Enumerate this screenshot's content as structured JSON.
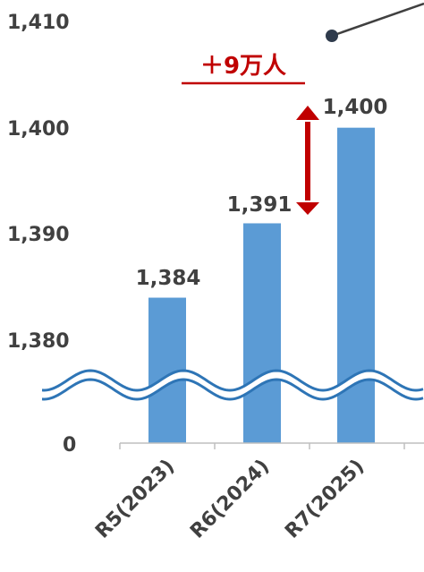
{
  "chart_data": {
    "type": "bar",
    "title": "",
    "xlabel": "",
    "ylabel": "",
    "categories": [
      "R5(2023)",
      "R6(2024)",
      "R7(2025)"
    ],
    "values": [
      1384,
      1391,
      1400
    ],
    "data_labels": [
      "1,384",
      "1,391",
      "1,400"
    ],
    "y_ticks": [
      "0",
      "1,380",
      "1,390",
      "1,400",
      "1,410"
    ],
    "ylim": [
      1380,
      1410
    ],
    "axis_break": true,
    "grid": false,
    "bar_color": "#5b9bd5",
    "annotation": {
      "text": "＋9万人",
      "color": "#c00000",
      "between": [
        "R6(2024)",
        "R7(2025)"
      ]
    }
  }
}
